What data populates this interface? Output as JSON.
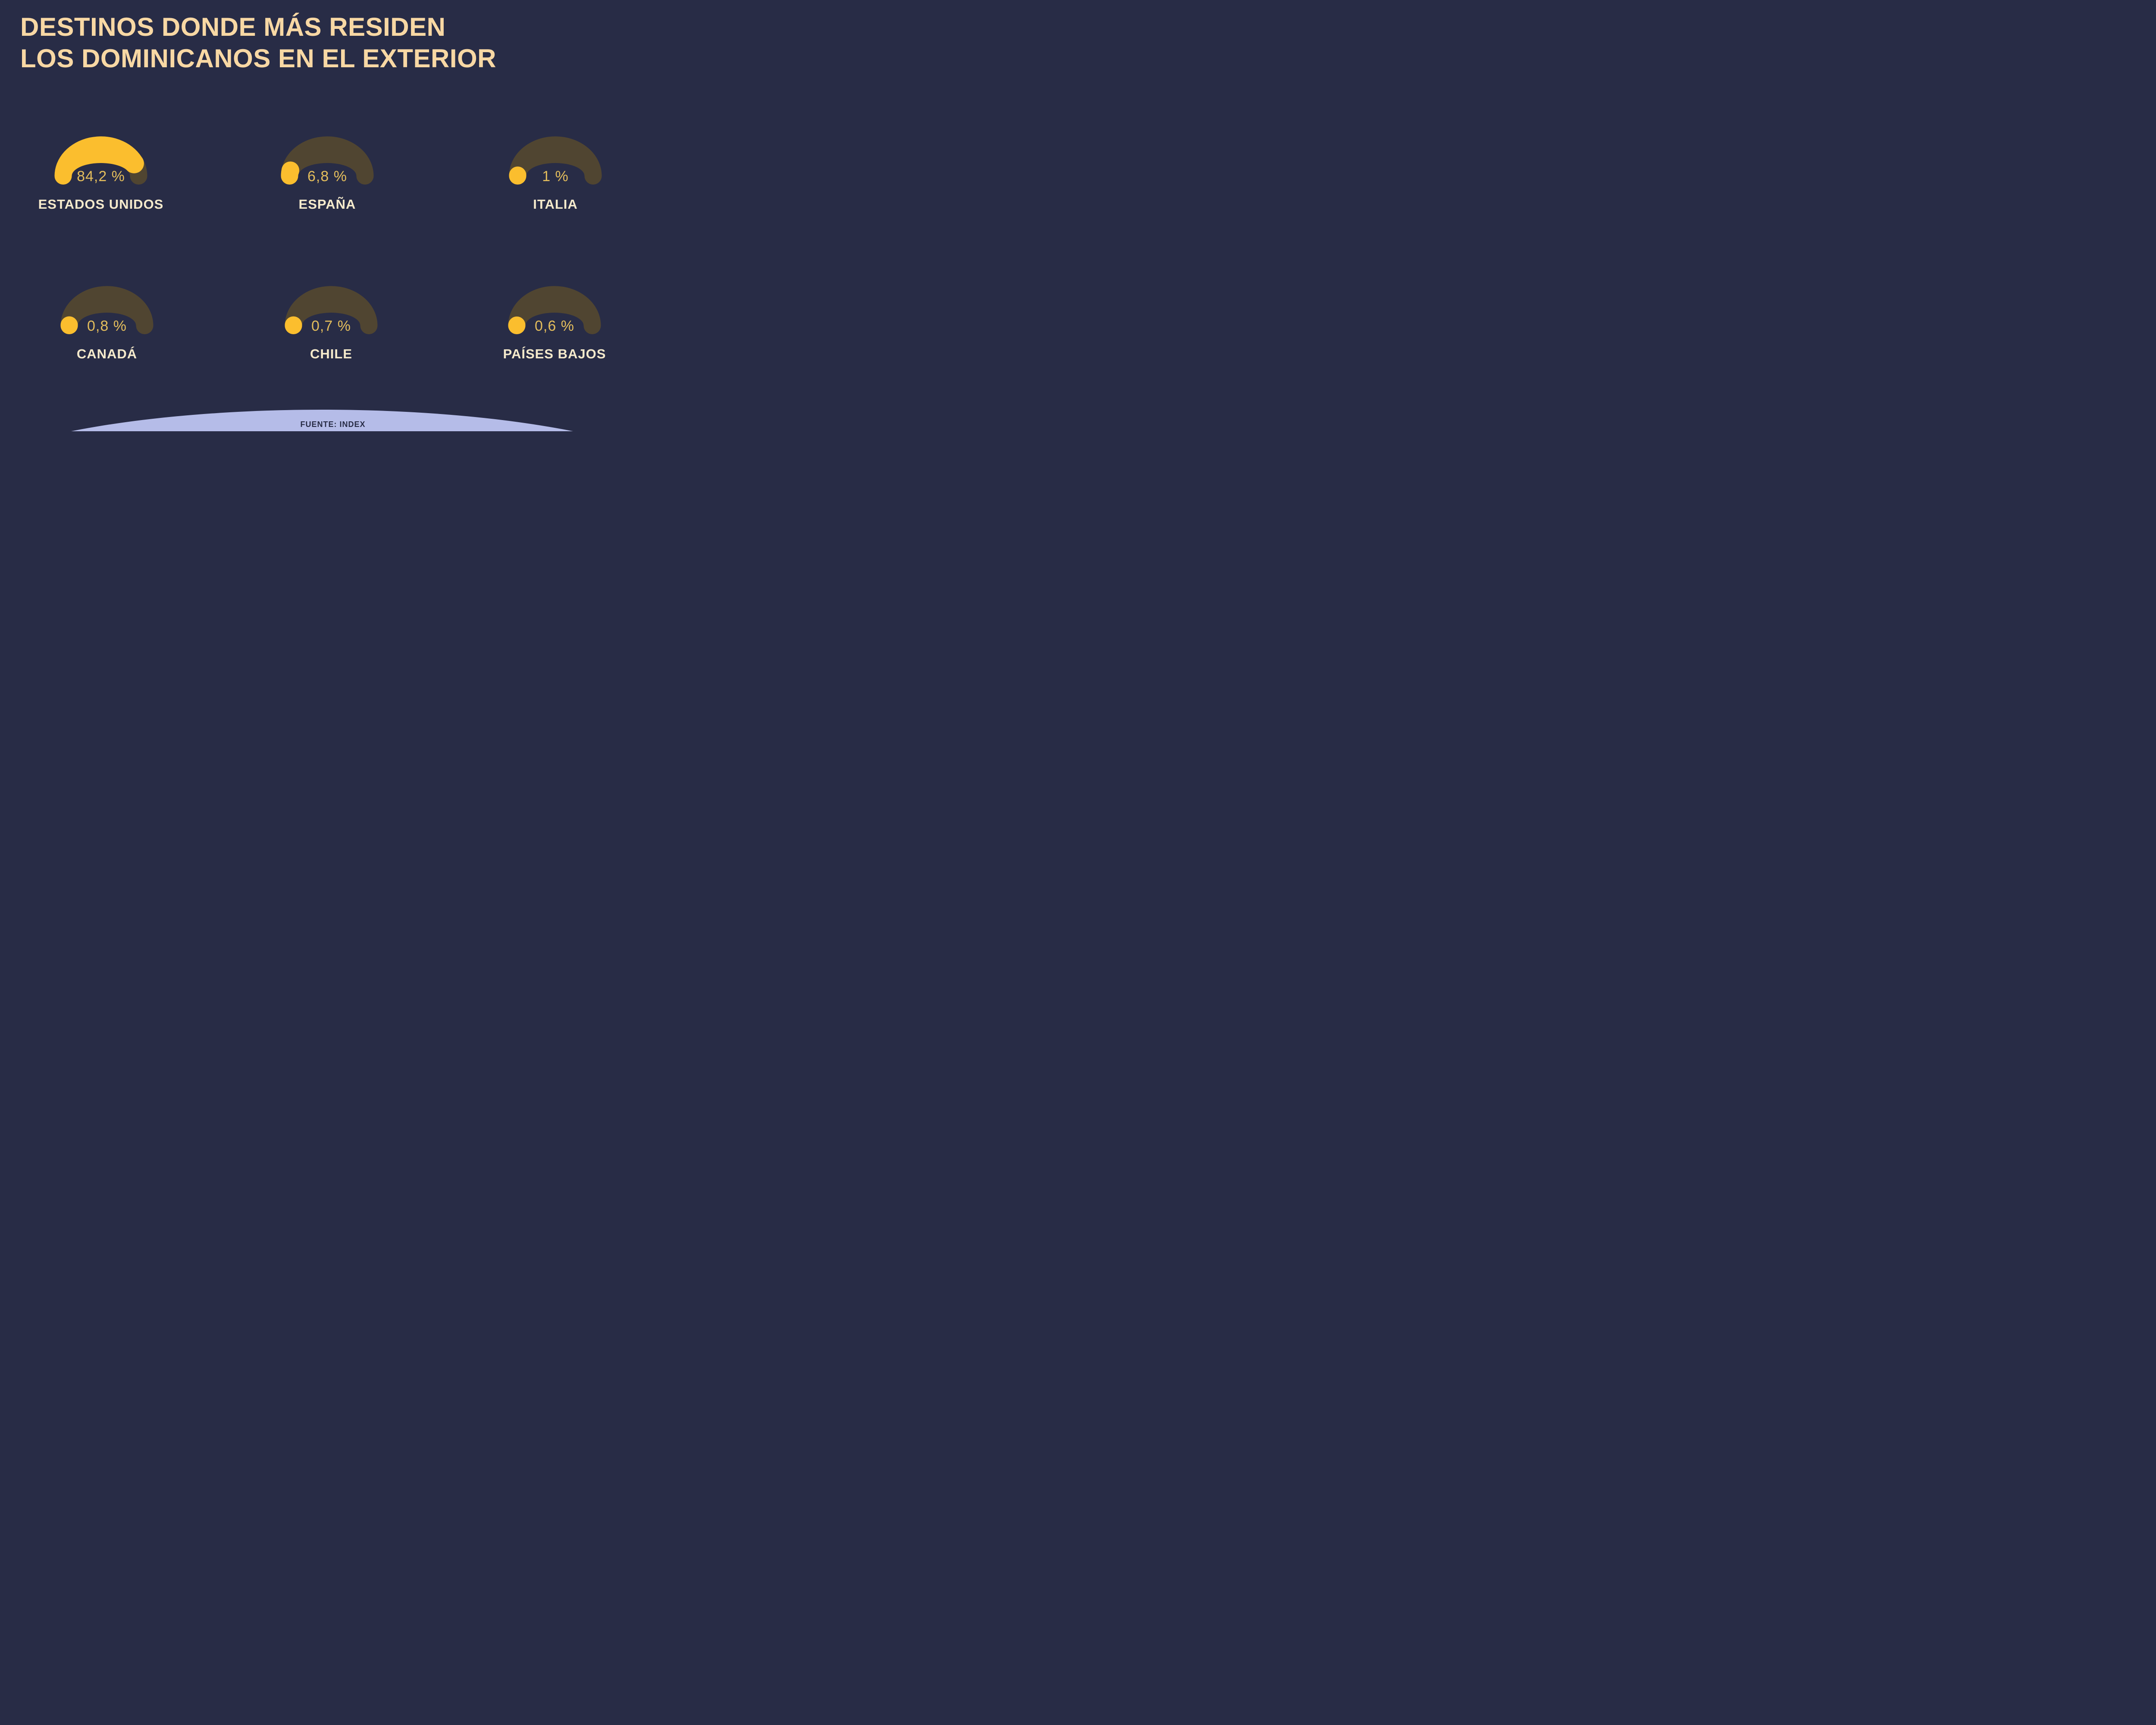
{
  "title": {
    "line1": "DESTINOS DONDE MÁS RESIDEN",
    "line2": "LOS DOMINICANOS EN EL EXTERIOR"
  },
  "footer": {
    "source": "FUENTE: INDEX"
  },
  "colors": {
    "background": "#282C46",
    "track": "#504531",
    "progress": "#FBBE2E",
    "value_text": "#E3BD5C",
    "title_text": "#F8D8A4",
    "label_text": "#F5EACC",
    "footer_bg": "#B5BCE8",
    "footer_text": "#272B45"
  },
  "gauges": [
    {
      "label": "ESTADOS UNIDOS",
      "value_label": "84,2 %",
      "percent": 84.2
    },
    {
      "label": "ESPAÑA",
      "value_label": "6,8 %",
      "percent": 6.8
    },
    {
      "label": "ITALIA",
      "value_label": "1 %",
      "percent": 1
    },
    {
      "label": "CANADÁ",
      "value_label": "0,8 %",
      "percent": 0.8
    },
    {
      "label": "CHILE",
      "value_label": "0,7 %",
      "percent": 0.7
    },
    {
      "label": "PAÍSES BAJOS",
      "value_label": "0,6 %",
      "percent": 0.6
    }
  ],
  "chart_data": {
    "type": "pie",
    "variant": "semicircle-gauge-grid",
    "title": "DESTINOS DONDE MÁS RESIDEN LOS DOMINICANOS EN EL EXTERIOR",
    "categories": [
      "ESTADOS UNIDOS",
      "ESPAÑA",
      "ITALIA",
      "CANADÁ",
      "CHILE",
      "PAÍSES BAJOS"
    ],
    "values": [
      84.2,
      6.8,
      1,
      0.8,
      0.7,
      0.6
    ],
    "value_labels": [
      "84,2 %",
      "6,8 %",
      "1 %",
      "0,8 %",
      "0,7 %",
      "0,6 %"
    ],
    "unit": "%",
    "layout": "2 rows x 3 columns, each a half-donut gauge with rounded tapered ends",
    "legend": "none",
    "source": "FUENTE: INDEX",
    "gauge_style": {
      "track_color": "#504531",
      "progress_color": "#FBBE2E",
      "start": "left end of semicircle",
      "direction": "clockwise over the top"
    }
  }
}
